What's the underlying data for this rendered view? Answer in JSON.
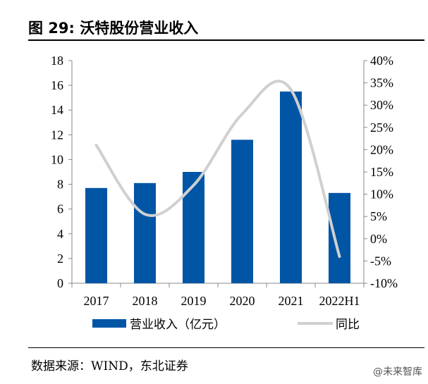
{
  "title": "图  29:  沃特股份营业收入",
  "source": "数据来源：WIND，东北证券",
  "watermark": "@未来智库",
  "chart_data": {
    "type": "bar+line",
    "categories": [
      "2017",
      "2018",
      "2019",
      "2020",
      "2021",
      "2022H1"
    ],
    "series": [
      {
        "name": "营业收入（亿元）",
        "type": "bar",
        "axis": "left",
        "color": "#0055A5",
        "values": [
          7.7,
          8.1,
          9.0,
          11.6,
          15.5,
          7.3
        ]
      },
      {
        "name": "同比",
        "type": "line",
        "axis": "right",
        "color": "#D0D0D0",
        "values": [
          21.0,
          5.5,
          12.0,
          28.0,
          33.5,
          -4.0
        ]
      }
    ],
    "left_axis": {
      "min": 0,
      "max": 18,
      "ticks": [
        0,
        2,
        4,
        6,
        8,
        10,
        12,
        14,
        16,
        18
      ]
    },
    "right_axis": {
      "min": -10,
      "max": 40,
      "ticks": [
        -10,
        -5,
        0,
        5,
        10,
        15,
        20,
        25,
        30,
        35,
        40
      ],
      "tick_labels": [
        "-10%",
        "-5%",
        "0%",
        "5%",
        "10%",
        "15%",
        "20%",
        "25%",
        "30%",
        "35%",
        "40%"
      ]
    },
    "legend_position": "bottom"
  }
}
